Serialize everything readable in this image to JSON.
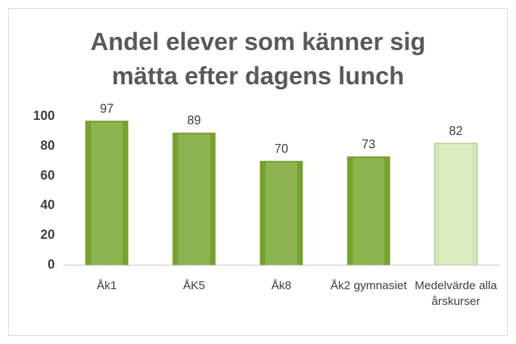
{
  "chart_data": {
    "type": "bar",
    "title": "Andel elever som känner sig mätta efter dagens lunch",
    "categories": [
      "Åk1",
      "ÅK5",
      "Åk8",
      "Åk2 gymnasiet",
      "Medelvärde alla årskurser"
    ],
    "values": [
      97,
      89,
      70,
      73,
      82
    ],
    "colors": [
      "#76a32b",
      "#76a32b",
      "#76a32b",
      "#76a32b",
      "#d3e8b3"
    ],
    "ylim": [
      0,
      100
    ],
    "yticks": [
      0,
      20,
      40,
      60,
      80,
      100
    ],
    "grid": false
  }
}
